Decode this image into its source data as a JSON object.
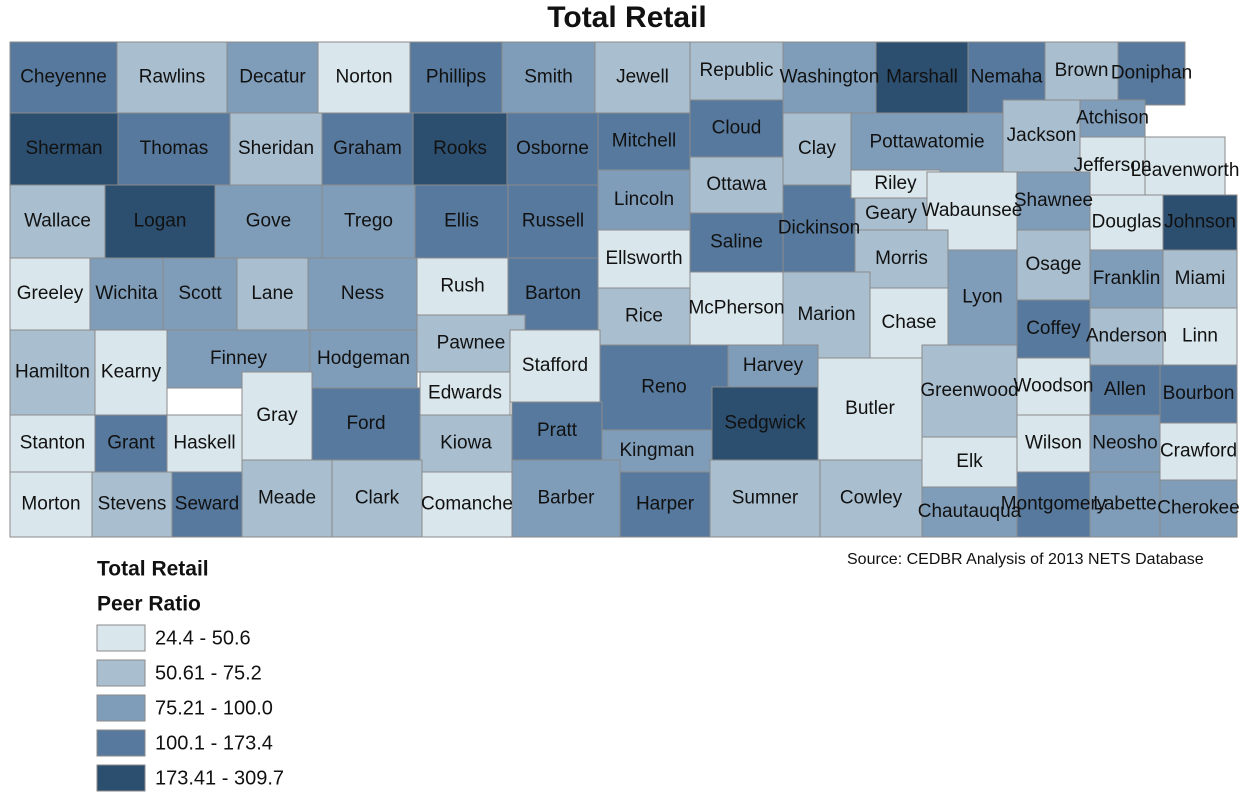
{
  "title": "Total Retail",
  "source": "Source:  CEDBR Analysis of 2013 NETS Database",
  "legend": {
    "title": "Total Retail",
    "subtitle": "Peer Ratio",
    "items": [
      {
        "label": "24.4 - 50.6",
        "color": "#d9e6ec"
      },
      {
        "label": "50.61 - 75.2",
        "color": "#a9bfd0"
      },
      {
        "label": "75.21 - 100.0",
        "color": "#7f9db9"
      },
      {
        "label": "100.1 - 173.4",
        "color": "#56799d"
      },
      {
        "label": "173.41 - 309.7",
        "color": "#2c4f70"
      }
    ]
  },
  "counties": [
    {
      "name": "Cheyenne",
      "color": "#56799d"
    },
    {
      "name": "Rawlins",
      "color": "#a9bfd0"
    },
    {
      "name": "Decatur",
      "color": "#7f9db9"
    },
    {
      "name": "Norton",
      "color": "#d9e6ec"
    },
    {
      "name": "Phillips",
      "color": "#56799d"
    },
    {
      "name": "Smith",
      "color": "#7f9db9"
    },
    {
      "name": "Jewell",
      "color": "#a9bfd0"
    },
    {
      "name": "Republic",
      "color": "#a9bfd0"
    },
    {
      "name": "Washington",
      "color": "#7f9db9"
    },
    {
      "name": "Marshall",
      "color": "#2c4f70"
    },
    {
      "name": "Nemaha",
      "color": "#56799d"
    },
    {
      "name": "Brown",
      "color": "#a9bfd0"
    },
    {
      "name": "Doniphan",
      "color": "#56799d"
    },
    {
      "name": "Sherman",
      "color": "#2c4f70"
    },
    {
      "name": "Thomas",
      "color": "#56799d"
    },
    {
      "name": "Sheridan",
      "color": "#a9bfd0"
    },
    {
      "name": "Graham",
      "color": "#56799d"
    },
    {
      "name": "Rooks",
      "color": "#2c4f70"
    },
    {
      "name": "Osborne",
      "color": "#56799d"
    },
    {
      "name": "Mitchell",
      "color": "#56799d"
    },
    {
      "name": "Cloud",
      "color": "#56799d"
    },
    {
      "name": "Clay",
      "color": "#a9bfd0"
    },
    {
      "name": "Pottawatomie",
      "color": "#7f9db9"
    },
    {
      "name": "Jackson",
      "color": "#a9bfd0"
    },
    {
      "name": "Atchison",
      "color": "#7f9db9"
    },
    {
      "name": "Jefferson",
      "color": "#d9e6ec"
    },
    {
      "name": "Leavenworth",
      "color": "#d9e6ec"
    },
    {
      "name": "Wallace",
      "color": "#a9bfd0"
    },
    {
      "name": "Logan",
      "color": "#2c4f70"
    },
    {
      "name": "Gove",
      "color": "#7f9db9"
    },
    {
      "name": "Trego",
      "color": "#7f9db9"
    },
    {
      "name": "Ellis",
      "color": "#56799d"
    },
    {
      "name": "Russell",
      "color": "#56799d"
    },
    {
      "name": "Lincoln",
      "color": "#7f9db9"
    },
    {
      "name": "Ottawa",
      "color": "#a9bfd0"
    },
    {
      "name": "Dickinson",
      "color": "#56799d"
    },
    {
      "name": "Riley",
      "color": "#d9e6ec"
    },
    {
      "name": "Geary",
      "color": "#a9bfd0"
    },
    {
      "name": "Wabaunsee",
      "color": "#d9e6ec"
    },
    {
      "name": "Shawnee",
      "color": "#7f9db9"
    },
    {
      "name": "Douglas",
      "color": "#d9e6ec"
    },
    {
      "name": "Johnson",
      "color": "#2c4f70"
    },
    {
      "name": "Ellsworth",
      "color": "#d9e6ec"
    },
    {
      "name": "Saline",
      "color": "#56799d"
    },
    {
      "name": "Morris",
      "color": "#a9bfd0"
    },
    {
      "name": "Greeley",
      "color": "#d9e6ec"
    },
    {
      "name": "Wichita",
      "color": "#7f9db9"
    },
    {
      "name": "Scott",
      "color": "#7f9db9"
    },
    {
      "name": "Lane",
      "color": "#a9bfd0"
    },
    {
      "name": "Ness",
      "color": "#7f9db9"
    },
    {
      "name": "Rush",
      "color": "#d9e6ec"
    },
    {
      "name": "Barton",
      "color": "#56799d"
    },
    {
      "name": "Rice",
      "color": "#a9bfd0"
    },
    {
      "name": "McPherson",
      "color": "#d9e6ec"
    },
    {
      "name": "Marion",
      "color": "#a9bfd0"
    },
    {
      "name": "Chase",
      "color": "#d9e6ec"
    },
    {
      "name": "Lyon",
      "color": "#7f9db9"
    },
    {
      "name": "Osage",
      "color": "#a9bfd0"
    },
    {
      "name": "Franklin",
      "color": "#7f9db9"
    },
    {
      "name": "Miami",
      "color": "#a9bfd0"
    },
    {
      "name": "Hamilton",
      "color": "#a9bfd0"
    },
    {
      "name": "Kearny",
      "color": "#d9e6ec"
    },
    {
      "name": "Finney",
      "color": "#7f9db9"
    },
    {
      "name": "Hodgeman",
      "color": "#7f9db9"
    },
    {
      "name": "Pawnee",
      "color": "#a9bfd0"
    },
    {
      "name": "Stafford",
      "color": "#d9e6ec"
    },
    {
      "name": "Edwards",
      "color": "#d9e6ec"
    },
    {
      "name": "Reno",
      "color": "#56799d"
    },
    {
      "name": "Harvey",
      "color": "#7f9db9"
    },
    {
      "name": "Butler",
      "color": "#d9e6ec"
    },
    {
      "name": "Greenwood",
      "color": "#a9bfd0"
    },
    {
      "name": "Coffey",
      "color": "#56799d"
    },
    {
      "name": "Anderson",
      "color": "#a9bfd0"
    },
    {
      "name": "Linn",
      "color": "#d9e6ec"
    },
    {
      "name": "Woodson",
      "color": "#d9e6ec"
    },
    {
      "name": "Allen",
      "color": "#56799d"
    },
    {
      "name": "Bourbon",
      "color": "#56799d"
    },
    {
      "name": "Stanton",
      "color": "#d9e6ec"
    },
    {
      "name": "Grant",
      "color": "#56799d"
    },
    {
      "name": "Haskell",
      "color": "#d9e6ec"
    },
    {
      "name": "Gray",
      "color": "#d9e6ec"
    },
    {
      "name": "Ford",
      "color": "#56799d"
    },
    {
      "name": "Kiowa",
      "color": "#a9bfd0"
    },
    {
      "name": "Pratt",
      "color": "#56799d"
    },
    {
      "name": "Kingman",
      "color": "#7f9db9"
    },
    {
      "name": "Sedgwick",
      "color": "#2c4f70"
    },
    {
      "name": "Elk",
      "color": "#d9e6ec"
    },
    {
      "name": "Wilson",
      "color": "#d9e6ec"
    },
    {
      "name": "Neosho",
      "color": "#7f9db9"
    },
    {
      "name": "Crawford",
      "color": "#d9e6ec"
    },
    {
      "name": "Morton",
      "color": "#d9e6ec"
    },
    {
      "name": "Stevens",
      "color": "#a9bfd0"
    },
    {
      "name": "Seward",
      "color": "#56799d"
    },
    {
      "name": "Meade",
      "color": "#a9bfd0"
    },
    {
      "name": "Clark",
      "color": "#a9bfd0"
    },
    {
      "name": "Comanche",
      "color": "#d9e6ec"
    },
    {
      "name": "Barber",
      "color": "#7f9db9"
    },
    {
      "name": "Harper",
      "color": "#56799d"
    },
    {
      "name": "Sumner",
      "color": "#a9bfd0"
    },
    {
      "name": "Cowley",
      "color": "#a9bfd0"
    },
    {
      "name": "Chautauqua",
      "color": "#7f9db9"
    },
    {
      "name": "Montgomery",
      "color": "#56799d"
    },
    {
      "name": "Labette",
      "color": "#7f9db9"
    },
    {
      "name": "Cherokee",
      "color": "#7f9db9"
    }
  ]
}
